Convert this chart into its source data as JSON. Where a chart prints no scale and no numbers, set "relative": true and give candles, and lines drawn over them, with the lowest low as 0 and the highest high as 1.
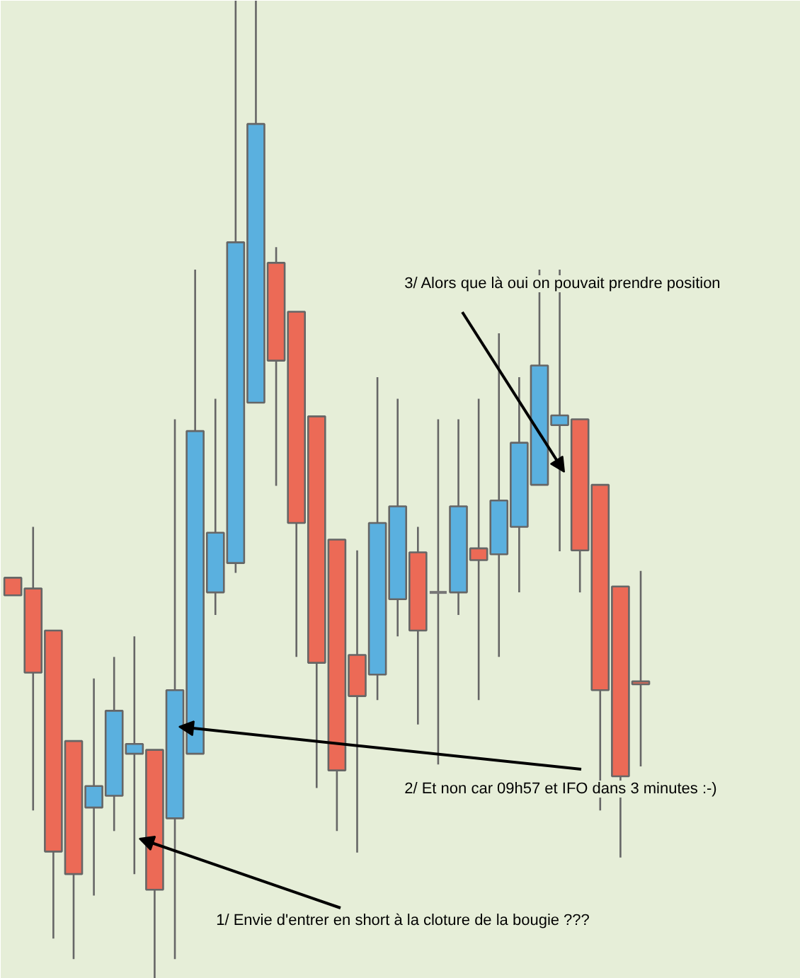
{
  "chart_data": {
    "type": "candlestick",
    "relative": true,
    "tick_labels": false,
    "grid": false,
    "categories": [
      null,
      null,
      null,
      null,
      null,
      null,
      null,
      null,
      null,
      null,
      null,
      null,
      null,
      null,
      null,
      null,
      null,
      null,
      null,
      null,
      null,
      null,
      null,
      null,
      null,
      null,
      null,
      null,
      null,
      null,
      null,
      null
    ],
    "ohlc": [
      [
        0.41,
        0.41,
        0.392,
        0.392
      ],
      [
        0.399,
        0.462,
        0.172,
        0.313
      ],
      [
        0.356,
        0.356,
        0.041,
        0.13
      ],
      [
        0.243,
        0.243,
        0.02,
        0.107
      ],
      [
        0.175,
        0.307,
        0.085,
        0.197
      ],
      [
        0.187,
        0.329,
        0.151,
        0.274
      ],
      [
        0.23,
        0.35,
        0.107,
        0.24
      ],
      [
        0.234,
        0.234,
        0.0,
        0.091
      ],
      [
        0.164,
        0.572,
        0.02,
        0.295
      ],
      [
        0.23,
        0.725,
        0.23,
        0.56
      ],
      [
        0.395,
        0.593,
        0.372,
        0.456
      ],
      [
        0.425,
        1.0,
        0.415,
        0.753
      ],
      [
        0.589,
        1.0,
        0.589,
        0.874
      ],
      [
        0.732,
        0.748,
        0.504,
        0.632
      ],
      [
        0.682,
        0.682,
        0.329,
        0.466
      ],
      [
        0.575,
        0.575,
        0.195,
        0.323
      ],
      [
        0.449,
        0.449,
        0.151,
        0.213
      ],
      [
        0.331,
        0.438,
        0.129,
        0.289
      ],
      [
        0.311,
        0.615,
        0.285,
        0.466
      ],
      [
        0.388,
        0.593,
        0.35,
        0.483
      ],
      [
        0.436,
        0.462,
        0.26,
        0.356
      ],
      [
        0.395,
        0.572,
        0.219,
        0.395
      ],
      [
        0.395,
        0.572,
        0.372,
        0.483
      ],
      [
        0.44,
        0.593,
        0.285,
        0.428
      ],
      [
        0.434,
        0.66,
        0.329,
        0.489
      ],
      [
        0.462,
        0.615,
        0.395,
        0.548
      ],
      [
        0.505,
        0.725,
        0.505,
        0.627
      ],
      [
        0.566,
        0.725,
        0.437,
        0.576
      ],
      [
        0.572,
        0.572,
        0.395,
        0.438
      ],
      [
        0.505,
        0.505,
        0.172,
        0.295
      ],
      [
        0.401,
        0.401,
        0.124,
        0.207
      ],
      [
        0.304,
        0.417,
        0.217,
        0.301
      ]
    ],
    "annotations": [
      "3/ Alors que là oui on pouvait prendre position",
      "2/ Et non car 09h57 et IFO dans 3 minutes  :-)",
      "1/ Envie d'entrer en short à la cloture de la bougie ???"
    ]
  }
}
